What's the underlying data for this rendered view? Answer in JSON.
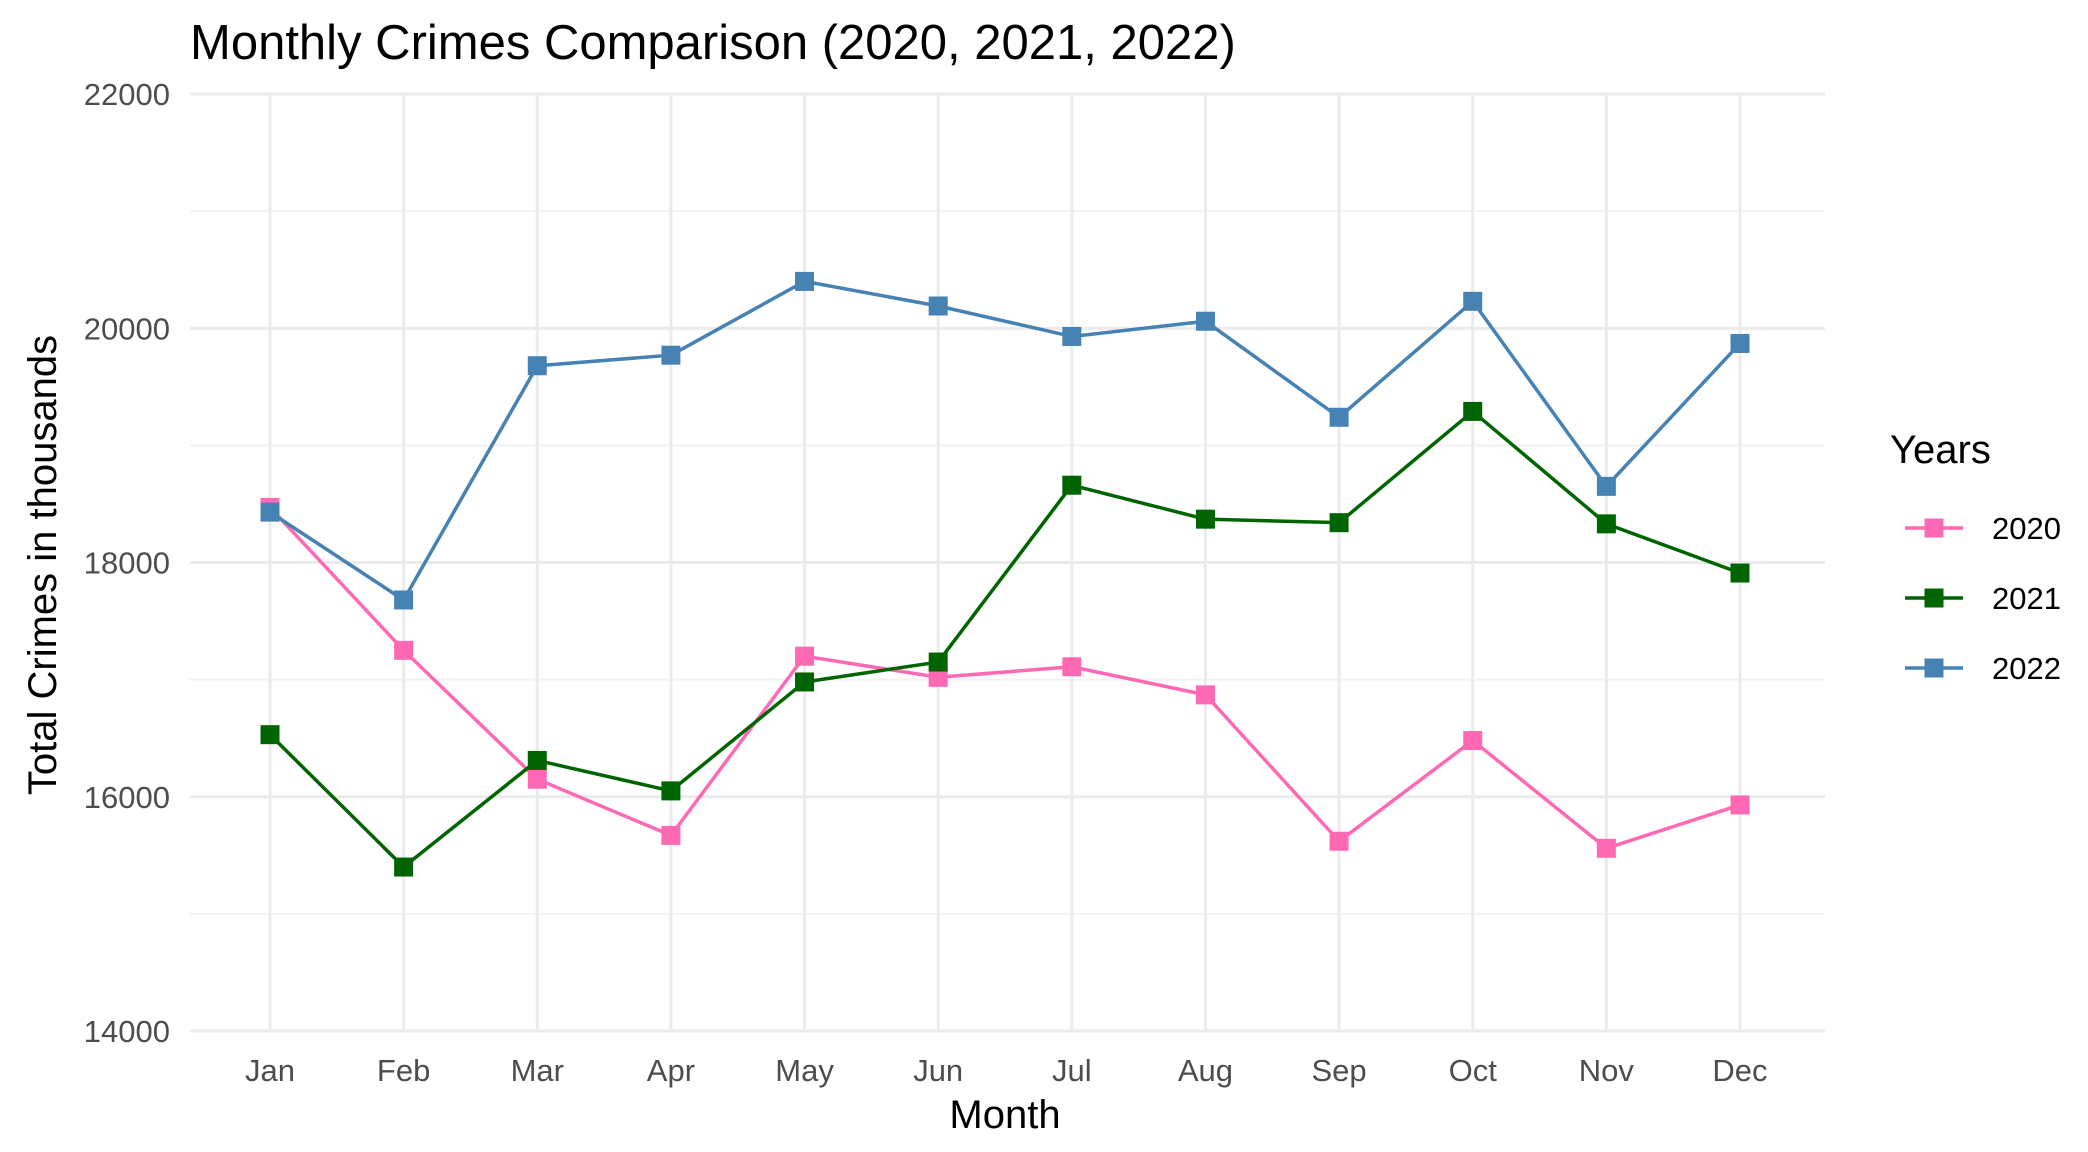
{
  "chart_data": {
    "type": "line",
    "title": "Monthly Crimes Comparison (2020, 2021, 2022)",
    "xlabel": "Month",
    "ylabel": "Total Crimes in thousands",
    "categories": [
      "Jan",
      "Feb",
      "Mar",
      "Apr",
      "May",
      "Jun",
      "Jul",
      "Aug",
      "Sep",
      "Oct",
      "Nov",
      "Dec"
    ],
    "ylim": [
      14000,
      22000
    ],
    "yticks": [
      14000,
      16000,
      18000,
      20000,
      22000
    ],
    "ytick_labels": [
      "14000",
      "16000",
      "18000",
      "20000",
      "22000"
    ],
    "grid": true,
    "marker": "square",
    "legend": {
      "title": "Years",
      "placement": "right"
    },
    "series": [
      {
        "name": "2020",
        "color": "#ff69b4",
        "values": [
          18470,
          17250,
          16150,
          15670,
          17200,
          17020,
          17110,
          16870,
          15620,
          16480,
          15560,
          15930
        ]
      },
      {
        "name": "2021",
        "color": "#006400",
        "values": [
          16530,
          15400,
          16310,
          16050,
          16980,
          17150,
          18660,
          18370,
          18340,
          19290,
          18330,
          17910
        ]
      },
      {
        "name": "2022",
        "color": "#4682b4",
        "values": [
          18430,
          17680,
          19680,
          19770,
          20400,
          20190,
          19930,
          20060,
          19240,
          20230,
          18650,
          19870
        ]
      }
    ]
  }
}
